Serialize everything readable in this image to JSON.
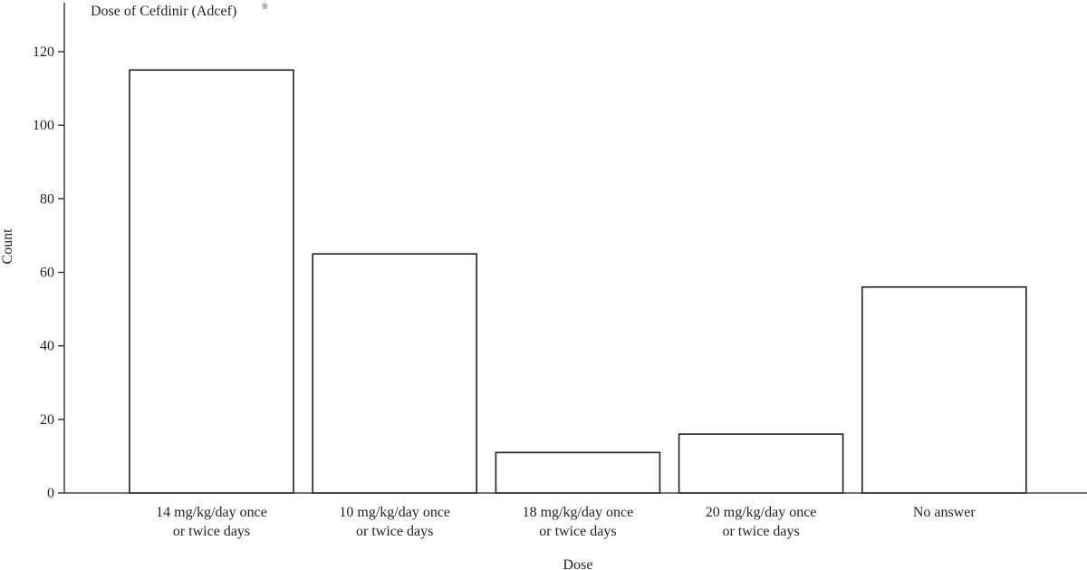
{
  "chart_data": {
    "type": "bar",
    "title": "Dose of Cefdinir (Adcef)",
    "title_superscript": "®",
    "xlabel": "Dose",
    "ylabel": "Count",
    "ylim": [
      0,
      130
    ],
    "yticks": [
      0,
      20,
      40,
      60,
      80,
      100,
      120
    ],
    "categories": [
      [
        "14 mg/kg/day once",
        "or twice days"
      ],
      [
        "10 mg/kg/day once",
        "or twice days"
      ],
      [
        "18 mg/kg/day once",
        "or twice days"
      ],
      [
        "20 mg/kg/day once",
        "or twice days"
      ],
      [
        "No answer"
      ]
    ],
    "values": [
      115,
      65,
      11,
      16,
      56
    ],
    "bar_fill": "#ffffff",
    "bar_stroke": "#231f20",
    "grid": false,
    "legend": "none"
  }
}
